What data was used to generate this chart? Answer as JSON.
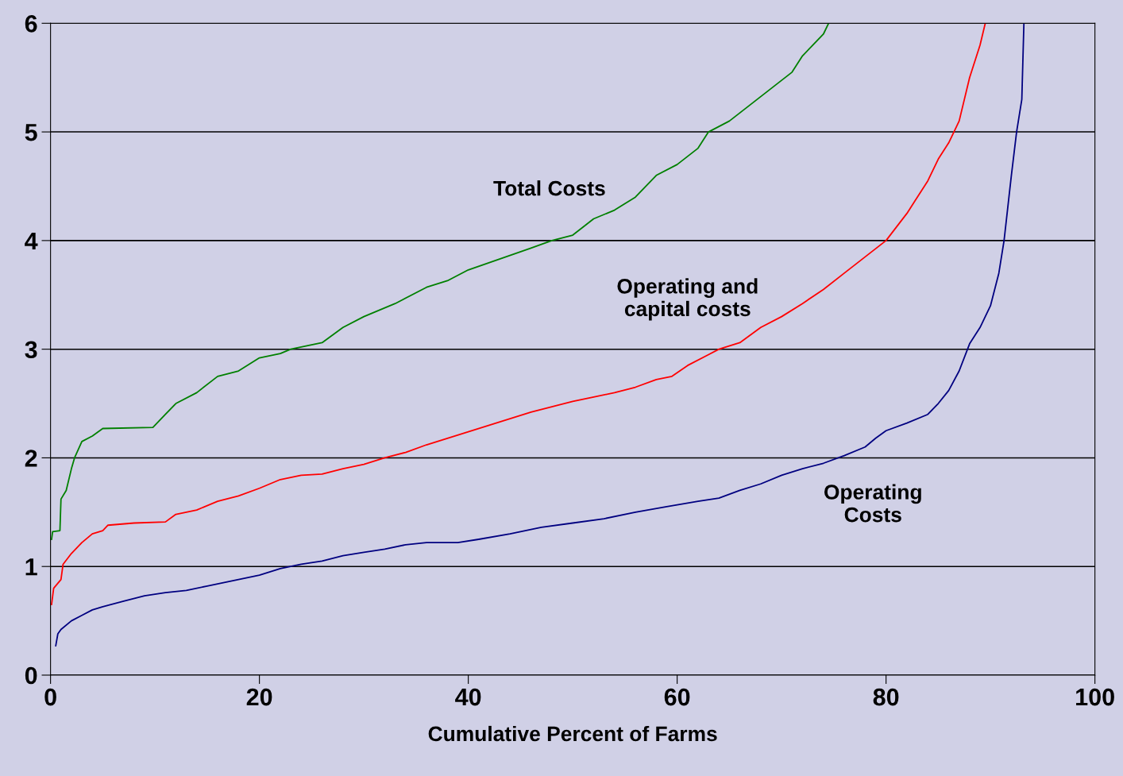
{
  "chart_data": {
    "type": "line",
    "xlabel": "Cumulative Percent of Farms",
    "xlim": [
      0,
      100
    ],
    "xticks": [
      0,
      20,
      40,
      60,
      80,
      100
    ],
    "ylim": [
      0,
      6
    ],
    "yticks": [
      0,
      1,
      2,
      3,
      4,
      5,
      6
    ],
    "grid": "y",
    "legend": false,
    "series": [
      {
        "name": "Total Costs",
        "color": "#008000",
        "x": [
          0.1,
          0.2,
          0.9,
          1.0,
          1.5,
          2.0,
          2.3,
          3,
          4,
          5,
          9.8,
          11,
          12,
          14,
          16,
          18,
          20,
          22,
          23,
          26,
          28,
          30,
          33,
          36,
          38,
          40,
          43,
          46,
          48,
          50,
          52,
          54,
          56,
          58,
          60,
          62,
          63,
          65,
          67,
          69,
          71,
          72,
          73,
          74,
          74.5
        ],
        "values": [
          1.25,
          1.32,
          1.33,
          1.62,
          1.7,
          1.9,
          2.0,
          2.15,
          2.2,
          2.27,
          2.28,
          2.4,
          2.5,
          2.6,
          2.75,
          2.8,
          2.92,
          2.96,
          3.0,
          3.06,
          3.2,
          3.3,
          3.42,
          3.57,
          3.63,
          3.73,
          3.83,
          3.93,
          4.0,
          4.05,
          4.2,
          4.28,
          4.4,
          4.6,
          4.7,
          4.85,
          5.0,
          5.1,
          5.25,
          5.4,
          5.55,
          5.7,
          5.8,
          5.9,
          6.0
        ]
      },
      {
        "name": "Operating and\ncapital costs",
        "color": "#ff0000",
        "x": [
          0.1,
          0.3,
          1,
          1.2,
          2,
          3,
          4,
          5,
          5.5,
          8,
          11,
          12,
          14,
          16,
          18,
          20,
          22,
          24,
          26,
          28,
          30,
          32,
          34,
          36,
          38,
          40,
          42,
          44,
          46,
          48,
          50,
          52,
          54,
          56,
          58,
          59.5,
          61,
          63,
          64,
          66,
          68,
          70,
          72,
          74,
          76,
          78,
          80,
          82,
          84,
          85,
          86,
          87,
          88,
          89,
          89.5
        ],
        "values": [
          0.65,
          0.8,
          0.88,
          1.02,
          1.12,
          1.22,
          1.3,
          1.33,
          1.38,
          1.4,
          1.41,
          1.48,
          1.52,
          1.6,
          1.65,
          1.72,
          1.8,
          1.84,
          1.85,
          1.9,
          1.94,
          2.0,
          2.05,
          2.12,
          2.18,
          2.24,
          2.3,
          2.36,
          2.42,
          2.47,
          2.52,
          2.56,
          2.6,
          2.65,
          2.72,
          2.75,
          2.85,
          2.95,
          3.0,
          3.06,
          3.2,
          3.3,
          3.42,
          3.55,
          3.7,
          3.85,
          4.0,
          4.25,
          4.55,
          4.75,
          4.9,
          5.1,
          5.5,
          5.8,
          6.0
        ]
      },
      {
        "name": "Operating\nCosts",
        "color": "#000080",
        "x": [
          0.5,
          0.7,
          1,
          2,
          3,
          4,
          5,
          7,
          9,
          11,
          13,
          15,
          17,
          20,
          22,
          24,
          26,
          28,
          30,
          32,
          34,
          36,
          39,
          41,
          44,
          47,
          50,
          53,
          56,
          59,
          62,
          64,
          66,
          68,
          70,
          72,
          74,
          76,
          78,
          79,
          80,
          82,
          84,
          85,
          86,
          87,
          88,
          89,
          90,
          90.8,
          91.3,
          92,
          92.5,
          93,
          93.2
        ],
        "values": [
          0.27,
          0.38,
          0.42,
          0.5,
          0.55,
          0.6,
          0.63,
          0.68,
          0.73,
          0.76,
          0.78,
          0.82,
          0.86,
          0.92,
          0.98,
          1.02,
          1.05,
          1.1,
          1.13,
          1.16,
          1.2,
          1.22,
          1.22,
          1.25,
          1.3,
          1.36,
          1.4,
          1.44,
          1.5,
          1.55,
          1.6,
          1.63,
          1.7,
          1.76,
          1.84,
          1.9,
          1.95,
          2.02,
          2.1,
          2.18,
          2.25,
          2.32,
          2.4,
          2.5,
          2.62,
          2.8,
          3.05,
          3.2,
          3.4,
          3.7,
          4.0,
          4.6,
          5.0,
          5.3,
          6.0
        ]
      }
    ]
  }
}
